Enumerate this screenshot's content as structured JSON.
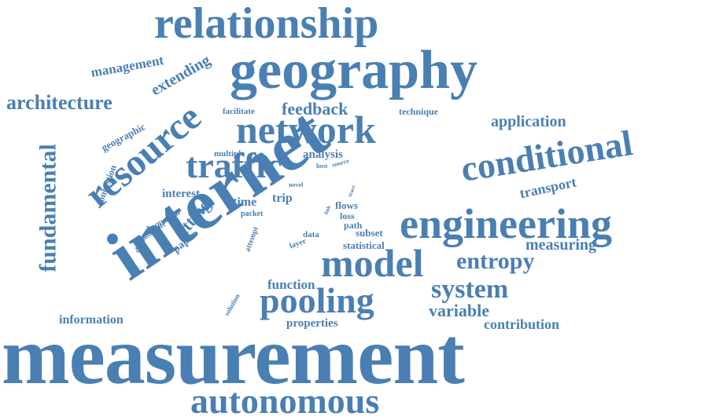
{
  "word_color": "#4a7fb3",
  "words": [
    {
      "text": "measurement"
    },
    {
      "text": "internet"
    },
    {
      "text": "geography"
    },
    {
      "text": "relationship"
    },
    {
      "text": "network"
    },
    {
      "text": "traffic"
    },
    {
      "text": "resource"
    },
    {
      "text": "engineering"
    },
    {
      "text": "conditional"
    },
    {
      "text": "model"
    },
    {
      "text": "pooling"
    },
    {
      "text": "autonomous"
    },
    {
      "text": "system"
    },
    {
      "text": "entropy"
    },
    {
      "text": "fundamental"
    },
    {
      "text": "architecture"
    },
    {
      "text": "feedback"
    },
    {
      "text": "application"
    },
    {
      "text": "management"
    },
    {
      "text": "extending"
    },
    {
      "text": "measuring"
    },
    {
      "text": "variable"
    },
    {
      "text": "contribution"
    },
    {
      "text": "information"
    },
    {
      "text": "transport"
    },
    {
      "text": "function"
    },
    {
      "text": "properties"
    },
    {
      "text": "statistical"
    },
    {
      "text": "subset"
    },
    {
      "text": "analysis"
    },
    {
      "text": "fitting"
    },
    {
      "text": "interest"
    },
    {
      "text": "time"
    },
    {
      "text": "trip"
    },
    {
      "text": "flows"
    },
    {
      "text": "loss"
    },
    {
      "text": "path"
    },
    {
      "text": "geographic"
    },
    {
      "text": "congestion"
    },
    {
      "text": "technique"
    },
    {
      "text": "facilitate"
    },
    {
      "text": "multiple"
    },
    {
      "text": "equation"
    },
    {
      "text": "estimate"
    },
    {
      "text": "paper"
    },
    {
      "text": "different"
    },
    {
      "text": "packet"
    },
    {
      "text": "attempt"
    },
    {
      "text": "data"
    },
    {
      "text": "layer"
    },
    {
      "text": "solution"
    },
    {
      "text": "novel"
    },
    {
      "text": "host"
    },
    {
      "text": "source"
    },
    {
      "text": "trace"
    },
    {
      "text": "link"
    }
  ]
}
